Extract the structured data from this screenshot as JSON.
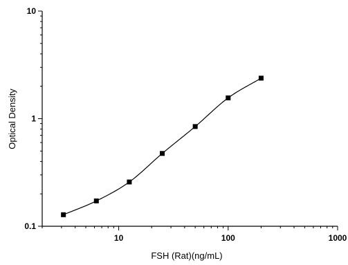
{
  "chart_data": {
    "type": "scatter",
    "title": "",
    "xlabel": "FSH (Rat)(ng/mL)",
    "ylabel": "Optical Density",
    "x_scale": "log",
    "y_scale": "log",
    "xlim": [
      2,
      1000
    ],
    "ylim": [
      0.1,
      10
    ],
    "x_ticks": [
      10,
      100,
      1000
    ],
    "x_tick_labels": [
      "10",
      "100",
      "1000"
    ],
    "y_ticks": [
      0.1,
      1,
      10
    ],
    "y_tick_labels": [
      "0.1",
      "1",
      "10"
    ],
    "grid": false,
    "legend": "none",
    "fit_curve": true,
    "marker": "square",
    "color": "#000000",
    "series": [
      {
        "x": [
          3.125,
          6.25,
          12.5,
          25,
          50,
          100,
          200
        ],
        "y": [
          0.128,
          0.172,
          0.258,
          0.475,
          0.845,
          1.56,
          2.38
        ]
      }
    ]
  }
}
